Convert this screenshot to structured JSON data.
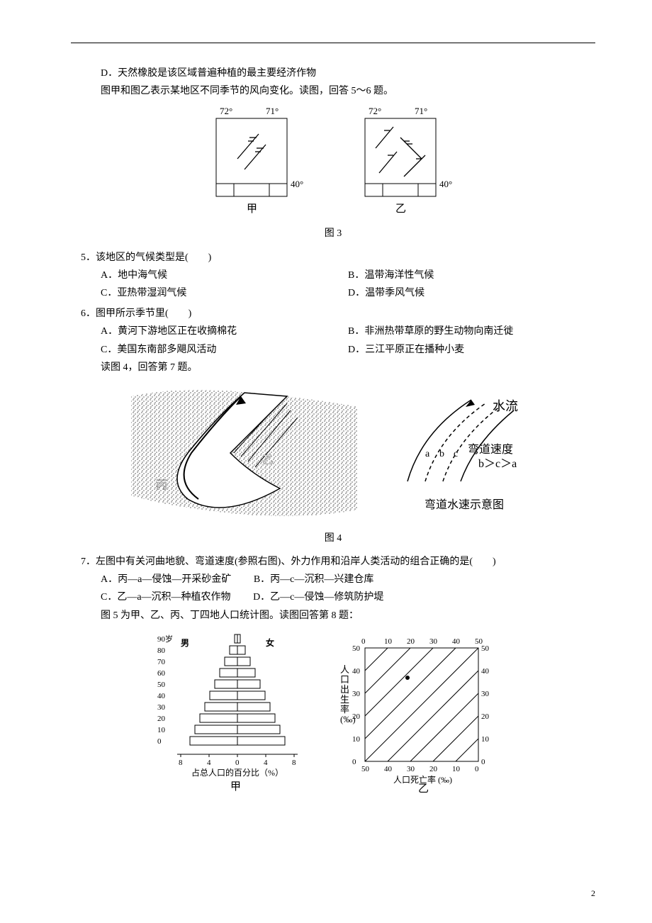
{
  "lines": {
    "opt_d_prev": "D．天然橡胶是该区域普遍种植的最主要经济作物",
    "intro_fig3": "图甲和图乙表示某地区不同季节的风向变化。读图，回答 5～6 题。",
    "fig3_label": "图 3",
    "q5": "5．该地区的气候类型是(　　)",
    "q5a": "A．地中海气候",
    "q5b": "B．温带海洋性气候",
    "q5c": "C．亚热带湿润气候",
    "q5d": "D．温带季风气候",
    "q6": "6．图甲所示季节里(　　)",
    "q6a": "A．黄河下游地区正在收摘棉花",
    "q6b": "B．非洲热带草原的野生动物向南迁徙",
    "q6c": "C．美国东南部多飓风活动",
    "q6d": "D．三江平原正在播种小麦",
    "intro_fig4": "读图 4，回答第 7 题。",
    "fig4_label": "图 4",
    "fig4_text_flow": "水流",
    "fig4_text_bend": "弯道速度",
    "fig4_text_rel": "b＞c＞a",
    "fig4_text_cap": "弯道水速示意图",
    "fig4_a": "a",
    "fig4_b": "b",
    "fig4_c": "c",
    "fig4_left_yi": "乙",
    "fig4_left_bing": "丙",
    "q7": "7．左图中有关河曲地貌、弯道速度(参照右图)、外力作用和沿岸人类活动的组合正确的是(　　)",
    "q7a": "A．丙—a—侵蚀—开采砂金矿",
    "q7b": "B．丙—c—沉积—兴建仓库",
    "q7c": "C．乙—a—沉积—种植农作物",
    "q7d": "D．乙—c—侵蚀—修筑防护堤",
    "intro_fig5": "图 5 为甲、乙、丙、丁四地人口统计图。读图回答第 8 题：",
    "fig5_left_label": "甲",
    "fig5_right_label": "乙",
    "pyramid_age_label": "90岁",
    "pyramid_male": "男",
    "pyramid_female": "女",
    "pyramid_xlabel": "占总人口的百分比（%）",
    "tri_ylabel": "人口出生率(‰)",
    "tri_xlabel": "人口死亡率 (‰)",
    "fig3_72": "72°",
    "fig3_71": "71°",
    "fig3_40": "40°",
    "fig3_jia": "甲",
    "fig3_yi": "乙"
  },
  "pyramid": {
    "ages": [
      "90",
      "80",
      "70",
      "60",
      "50",
      "40",
      "30",
      "20",
      "10",
      "0"
    ],
    "xticks": [
      "8",
      "4",
      "0",
      "4",
      "8"
    ]
  },
  "triangle": {
    "top_ticks": [
      "0",
      "10",
      "20",
      "30",
      "40",
      "50"
    ],
    "left_ticks": [
      "50",
      "40",
      "30",
      "20",
      "10",
      "0"
    ],
    "right_ticks": [
      "50",
      "40",
      "30",
      "20",
      "10",
      "0"
    ],
    "bottom_ticks": [
      "50",
      "40",
      "30",
      "20",
      "10",
      "0"
    ]
  },
  "page_number": "2",
  "colors": {
    "line": "#000000",
    "bg": "#ffffff"
  }
}
